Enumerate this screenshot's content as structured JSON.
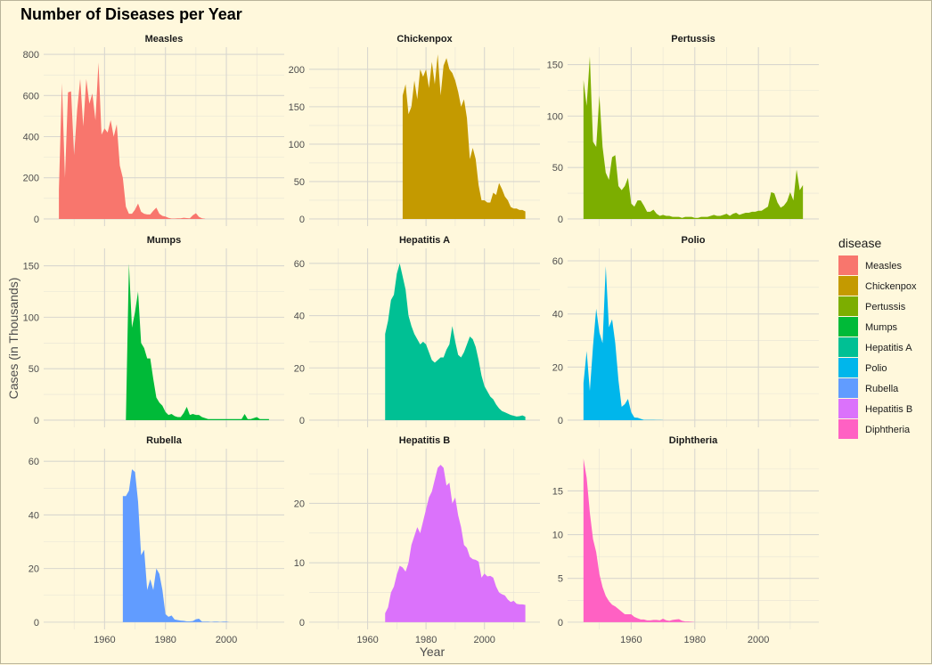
{
  "chart_data": {
    "type": "area",
    "title": "Number of Diseases per Year",
    "xlabel": "Year",
    "ylabel": "Cases (in Thousands)",
    "xlim": [
      1940,
      2019
    ],
    "x_ticks": [
      1960,
      1980,
      2000
    ],
    "grid": true,
    "facet_layout": "3x3",
    "legend": {
      "title": "disease",
      "position": "right",
      "entries": [
        {
          "name": "Measles",
          "color": "#F8766D"
        },
        {
          "name": "Chickenpox",
          "color": "#C49A00"
        },
        {
          "name": "Pertussis",
          "color": "#7CAE00"
        },
        {
          "name": "Mumps",
          "color": "#00BA38"
        },
        {
          "name": "Hepatitis A",
          "color": "#00C094"
        },
        {
          "name": "Polio",
          "color": "#00B6EB"
        },
        {
          "name": "Rubella",
          "color": "#619CFF"
        },
        {
          "name": "Hepatitis B",
          "color": "#DB72FB"
        },
        {
          "name": "Diphtheria",
          "color": "#FF61C3"
        }
      ]
    },
    "facets": [
      {
        "name": "Measles",
        "color": "#F8766D",
        "ylim": [
          0,
          800
        ],
        "y_ticks": [
          0,
          200,
          400,
          600,
          800
        ],
        "x": [
          1945,
          1946,
          1947,
          1948,
          1949,
          1950,
          1951,
          1952,
          1953,
          1954,
          1955,
          1956,
          1957,
          1958,
          1959,
          1960,
          1961,
          1962,
          1963,
          1964,
          1965,
          1966,
          1967,
          1968,
          1969,
          1970,
          1971,
          1972,
          1973,
          1974,
          1975,
          1976,
          1977,
          1978,
          1979,
          1980,
          1981,
          1982,
          1983,
          1984,
          1985,
          1986,
          1987,
          1988,
          1989,
          1990,
          1991,
          1992,
          1993
        ],
        "values": [
          140,
          660,
          200,
          615,
          620,
          310,
          530,
          680,
          450,
          680,
          560,
          610,
          480,
          760,
          410,
          440,
          420,
          480,
          400,
          460,
          260,
          200,
          60,
          25,
          25,
          45,
          75,
          35,
          25,
          22,
          22,
          40,
          55,
          25,
          15,
          12,
          5,
          2,
          2,
          3,
          3,
          6,
          4,
          3,
          18,
          28,
          10,
          3,
          1
        ]
      },
      {
        "name": "Chickenpox",
        "color": "#C49A00",
        "ylim": [
          0,
          220
        ],
        "y_ticks": [
          0,
          50,
          100,
          150,
          200
        ],
        "x": [
          1972,
          1973,
          1974,
          1975,
          1976,
          1977,
          1978,
          1979,
          1980,
          1981,
          1982,
          1983,
          1984,
          1985,
          1986,
          1987,
          1988,
          1989,
          1990,
          1991,
          1992,
          1993,
          1994,
          1995,
          1996,
          1997,
          1998,
          1999,
          2000,
          2001,
          2002,
          2003,
          2004,
          2005,
          2006,
          2007,
          2008,
          2009,
          2010,
          2011,
          2012,
          2013,
          2014
        ],
        "values": [
          165,
          180,
          140,
          150,
          185,
          160,
          200,
          190,
          200,
          175,
          210,
          180,
          220,
          165,
          205,
          215,
          200,
          195,
          185,
          170,
          150,
          160,
          135,
          80,
          95,
          80,
          45,
          25,
          25,
          22,
          22,
          35,
          32,
          48,
          40,
          30,
          25,
          16,
          14,
          14,
          12,
          12,
          10
        ]
      },
      {
        "name": "Pertussis",
        "color": "#7CAE00",
        "ylim": [
          0,
          160
        ],
        "y_ticks": [
          0,
          50,
          100,
          150
        ],
        "x": [
          1945,
          1946,
          1947,
          1948,
          1949,
          1950,
          1951,
          1952,
          1953,
          1954,
          1955,
          1956,
          1957,
          1958,
          1959,
          1960,
          1961,
          1962,
          1963,
          1964,
          1965,
          1966,
          1967,
          1968,
          1969,
          1970,
          1971,
          1972,
          1973,
          1974,
          1975,
          1976,
          1977,
          1978,
          1979,
          1980,
          1981,
          1982,
          1983,
          1984,
          1985,
          1986,
          1987,
          1988,
          1989,
          1990,
          1991,
          1992,
          1993,
          1994,
          1995,
          1996,
          1997,
          1998,
          1999,
          2000,
          2001,
          2002,
          2003,
          2004,
          2005,
          2006,
          2007,
          2008,
          2009,
          2010,
          2011,
          2012,
          2013,
          2014
        ],
        "values": [
          135,
          110,
          158,
          75,
          70,
          120,
          70,
          45,
          38,
          60,
          62,
          32,
          28,
          32,
          40,
          15,
          12,
          18,
          18,
          13,
          7,
          7,
          9,
          5,
          3,
          4,
          3,
          3,
          2,
          2,
          2,
          1,
          2,
          2,
          2,
          1,
          1,
          2,
          2,
          2,
          3,
          4,
          3,
          3,
          4,
          5,
          3,
          5,
          6,
          4,
          5,
          6,
          6,
          7,
          7,
          8,
          8,
          10,
          12,
          26,
          25,
          16,
          11,
          13,
          17,
          26,
          18,
          48,
          28,
          33
        ]
      },
      {
        "name": "Mumps",
        "color": "#00BA38",
        "ylim": [
          0,
          160
        ],
        "y_ticks": [
          0,
          50,
          100,
          150
        ],
        "x": [
          1967,
          1968,
          1969,
          1970,
          1971,
          1972,
          1973,
          1974,
          1975,
          1976,
          1977,
          1978,
          1979,
          1980,
          1981,
          1982,
          1983,
          1984,
          1985,
          1986,
          1987,
          1988,
          1989,
          1990,
          1991,
          1992,
          1993,
          1994,
          1995,
          1996,
          1997,
          1998,
          1999,
          2000,
          2001,
          2002,
          2003,
          2004,
          2005,
          2006,
          2007,
          2008,
          2009,
          2010,
          2011,
          2012,
          2013,
          2014
        ],
        "values": [
          0,
          152,
          90,
          105,
          125,
          75,
          70,
          60,
          60,
          40,
          22,
          17,
          14,
          8,
          5,
          6,
          4,
          3,
          3,
          7,
          13,
          5,
          6,
          5,
          5,
          3,
          2,
          1,
          1,
          1,
          1,
          1,
          1,
          1,
          1,
          1,
          1,
          1,
          1,
          6,
          1,
          1,
          2,
          3,
          1,
          1,
          1,
          1
        ]
      },
      {
        "name": "Hepatitis A",
        "color": "#00C094",
        "ylim": [
          0,
          63
        ],
        "y_ticks": [
          0,
          20,
          40,
          60
        ],
        "x": [
          1966,
          1967,
          1968,
          1969,
          1970,
          1971,
          1972,
          1973,
          1974,
          1975,
          1976,
          1977,
          1978,
          1979,
          1980,
          1981,
          1982,
          1983,
          1984,
          1985,
          1986,
          1987,
          1988,
          1989,
          1990,
          1991,
          1992,
          1993,
          1994,
          1995,
          1996,
          1997,
          1998,
          1999,
          2000,
          2001,
          2002,
          2003,
          2004,
          2005,
          2006,
          2007,
          2008,
          2009,
          2010,
          2011,
          2012,
          2013,
          2014
        ],
        "values": [
          33,
          38,
          46,
          48,
          56,
          60,
          55,
          50,
          40,
          36,
          33,
          31,
          29,
          30,
          29,
          26,
          23,
          22,
          23,
          24,
          24,
          27,
          29,
          36,
          30,
          25,
          24,
          26,
          29,
          32,
          31,
          28,
          23,
          17,
          13,
          11,
          9,
          8,
          6,
          4.5,
          3.5,
          3,
          2.5,
          2,
          1.7,
          1.4,
          1.5,
          1.8,
          1.3
        ]
      },
      {
        "name": "Polio",
        "color": "#00B6EB",
        "ylim": [
          0,
          62
        ],
        "y_ticks": [
          0,
          20,
          40,
          60
        ],
        "x": [
          1945,
          1946,
          1947,
          1948,
          1949,
          1950,
          1951,
          1952,
          1953,
          1954,
          1955,
          1956,
          1957,
          1958,
          1959,
          1960,
          1961,
          1962,
          1963,
          1964,
          1965,
          1966,
          1967,
          1968,
          1969,
          1970
        ],
        "values": [
          14,
          26,
          11,
          28,
          42,
          33,
          29,
          58,
          35,
          38,
          29,
          15,
          5,
          6,
          8,
          3,
          1,
          0.9,
          0.5,
          0.1,
          0.1,
          0.1,
          0.1,
          0.05,
          0.05,
          0.03
        ]
      },
      {
        "name": "Rubella",
        "color": "#619CFF",
        "ylim": [
          0,
          62
        ],
        "y_ticks": [
          0,
          20,
          40,
          60
        ],
        "x": [
          1966,
          1967,
          1968,
          1969,
          1970,
          1971,
          1972,
          1973,
          1974,
          1975,
          1976,
          1977,
          1978,
          1979,
          1980,
          1981,
          1982,
          1983,
          1984,
          1985,
          1986,
          1987,
          1988,
          1989,
          1990,
          1991,
          1992,
          1993,
          1994,
          1995,
          1996,
          1997,
          1998,
          1999,
          2000,
          2001,
          2002,
          2003,
          2004
        ],
        "values": [
          47,
          47,
          49,
          57,
          56,
          45,
          25,
          27,
          12,
          16,
          12,
          20,
          18,
          12,
          3,
          2,
          2.5,
          1,
          0.8,
          0.6,
          0.5,
          0.3,
          0.3,
          0.4,
          1.1,
          1.3,
          0.2,
          0.2,
          0.2,
          0.1,
          0.2,
          0.2,
          0.1,
          0.2,
          0.2,
          0.02,
          0.02,
          0.01,
          0.01
        ]
      },
      {
        "name": "Hepatitis B",
        "color": "#DB72FB",
        "ylim": [
          0,
          28
        ],
        "y_ticks": [
          0,
          10,
          20
        ],
        "x": [
          1966,
          1967,
          1968,
          1969,
          1970,
          1971,
          1972,
          1973,
          1974,
          1975,
          1976,
          1977,
          1978,
          1979,
          1980,
          1981,
          1982,
          1983,
          1984,
          1985,
          1986,
          1987,
          1988,
          1989,
          1990,
          1991,
          1992,
          1993,
          1994,
          1995,
          1996,
          1997,
          1998,
          1999,
          2000,
          2001,
          2002,
          2003,
          2004,
          2005,
          2006,
          2007,
          2008,
          2009,
          2010,
          2011,
          2012,
          2013,
          2014
        ],
        "values": [
          1.5,
          2.5,
          5,
          6,
          8,
          9.5,
          9.2,
          8.5,
          10,
          13,
          14.5,
          16,
          15,
          17,
          19,
          21,
          22,
          24,
          26,
          26.5,
          26,
          23,
          23.5,
          20,
          21,
          18,
          16,
          13,
          12.5,
          11,
          10.6,
          10.5,
          10.2,
          7.5,
          8.2,
          7.7,
          7.8,
          7.5,
          6,
          5,
          4.7,
          4.5,
          3.8,
          3.4,
          3.6,
          3.1,
          3,
          3,
          2.9
        ]
      },
      {
        "name": "Diphtheria",
        "color": "#FF61C3",
        "ylim": [
          0,
          19
        ],
        "y_ticks": [
          0,
          5,
          10,
          15
        ],
        "x": [
          1945,
          1946,
          1947,
          1948,
          1949,
          1950,
          1951,
          1952,
          1953,
          1954,
          1955,
          1956,
          1957,
          1958,
          1959,
          1960,
          1961,
          1962,
          1963,
          1964,
          1965,
          1966,
          1967,
          1968,
          1969,
          1970,
          1971,
          1972,
          1973,
          1974,
          1975,
          1976,
          1977,
          1978,
          1979,
          1980
        ],
        "values": [
          18.7,
          16.5,
          12.5,
          9.5,
          8,
          5.5,
          4,
          3,
          2.4,
          2,
          1.8,
          1.5,
          1.2,
          0.9,
          0.9,
          0.9,
          0.6,
          0.45,
          0.3,
          0.3,
          0.2,
          0.2,
          0.25,
          0.25,
          0.2,
          0.4,
          0.22,
          0.15,
          0.25,
          0.3,
          0.35,
          0.15,
          0.08,
          0.08,
          0.05,
          0.01
        ]
      }
    ]
  }
}
